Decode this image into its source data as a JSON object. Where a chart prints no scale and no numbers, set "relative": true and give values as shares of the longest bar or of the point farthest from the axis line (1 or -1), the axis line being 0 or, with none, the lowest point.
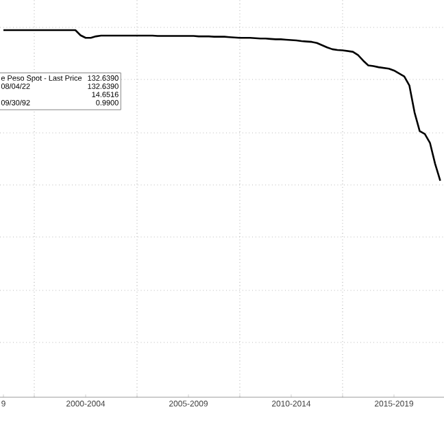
{
  "chart_data": {
    "type": "line",
    "relative": true,
    "categories": [
      "9",
      null,
      null,
      null,
      null,
      null,
      null,
      null,
      null,
      null,
      null,
      null,
      null,
      null,
      null,
      null,
      "2000-2004",
      null,
      null,
      null,
      null,
      null,
      null,
      null,
      null,
      null,
      null,
      null,
      null,
      null,
      null,
      null,
      null,
      null,
      null,
      null,
      "2005-2009",
      null,
      null,
      null,
      null,
      null,
      null,
      null,
      null,
      null,
      null,
      null,
      null,
      null,
      null,
      null,
      null,
      null,
      null,
      null,
      "2010-2014",
      null,
      null,
      null,
      null,
      null,
      null,
      null,
      null,
      null,
      null,
      null,
      null,
      null,
      null,
      null,
      null,
      null,
      null,
      null,
      "2015-2019",
      null,
      null,
      null,
      null,
      null,
      null,
      null,
      null,
      null
    ],
    "series": [
      {
        "color": "#000000",
        "values": [
          1,
          1,
          1,
          1,
          1,
          1,
          1,
          1,
          1,
          1,
          1,
          1,
          1,
          1,
          1,
          0.986,
          0.979,
          0.979,
          0.983,
          0.985,
          0.985,
          0.985,
          0.985,
          0.985,
          0.985,
          0.985,
          0.985,
          0.985,
          0.985,
          0.985,
          0.984,
          0.984,
          0.984,
          0.984,
          0.984,
          0.984,
          0.984,
          0.984,
          0.983,
          0.983,
          0.983,
          0.982,
          0.982,
          0.982,
          0.981,
          0.98,
          0.979,
          0.979,
          0.979,
          0.978,
          0.977,
          0.977,
          0.976,
          0.975,
          0.975,
          0.974,
          0.973,
          0.972,
          0.97,
          0.969,
          0.968,
          0.965,
          0.959,
          0.953,
          0.948,
          0.946,
          0.945,
          0.943,
          0.941,
          0.932,
          0.917,
          0.904,
          0.902,
          0.899,
          0.897,
          0.895,
          0.89,
          0.882,
          0.874,
          0.849,
          0.776,
          0.725,
          0.717,
          0.693,
          0.636,
          0.59
        ]
      }
    ],
    "grid": true,
    "tick_labels": "x",
    "line_style": "solid",
    "marker": "none",
    "annotations": [
      "e Peso Spot - Last Price",
      "132.6390",
      "08/04/22",
      "132.6390",
      "14.6516",
      "09/30/92",
      "0.9900"
    ]
  }
}
